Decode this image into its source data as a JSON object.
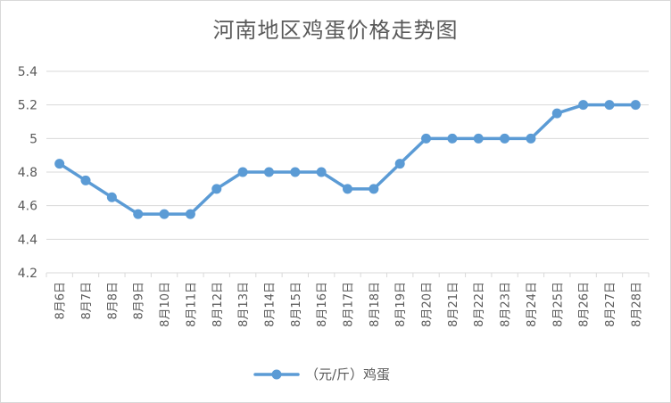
{
  "chart_data": {
    "type": "line",
    "title": "河南地区鸡蛋价格走势图",
    "categories": [
      "8月6日",
      "8月7日",
      "8月8日",
      "8月9日",
      "8月10日",
      "8月11日",
      "8月12日",
      "8月13日",
      "8月14日",
      "8月15日",
      "8月16日",
      "8月17日",
      "8月18日",
      "8月19日",
      "8月20日",
      "8月21日",
      "8月22日",
      "8月23日",
      "8月24日",
      "8月25日",
      "8月26日",
      "8月27日",
      "8月28日"
    ],
    "series": [
      {
        "name": "（元/斤）鸡蛋",
        "values": [
          4.85,
          4.75,
          4.65,
          4.55,
          4.55,
          4.55,
          4.7,
          4.8,
          4.8,
          4.8,
          4.8,
          4.7,
          4.7,
          4.85,
          5,
          5,
          5,
          5,
          5,
          5.15,
          5.2,
          5.2,
          5.2
        ]
      }
    ],
    "ylim": [
      4.2,
      5.4
    ],
    "yticks": [
      4.2,
      4.4,
      4.6,
      4.8,
      5,
      5.2,
      5.4
    ],
    "ytick_labels": [
      "4.2",
      "4.4",
      "4.6",
      "4.8",
      "5",
      "5.2",
      "5.4"
    ],
    "grid": true,
    "legend_position": "bottom",
    "color": "#5b9bd5",
    "gridline_color": "#d9d9d9"
  }
}
